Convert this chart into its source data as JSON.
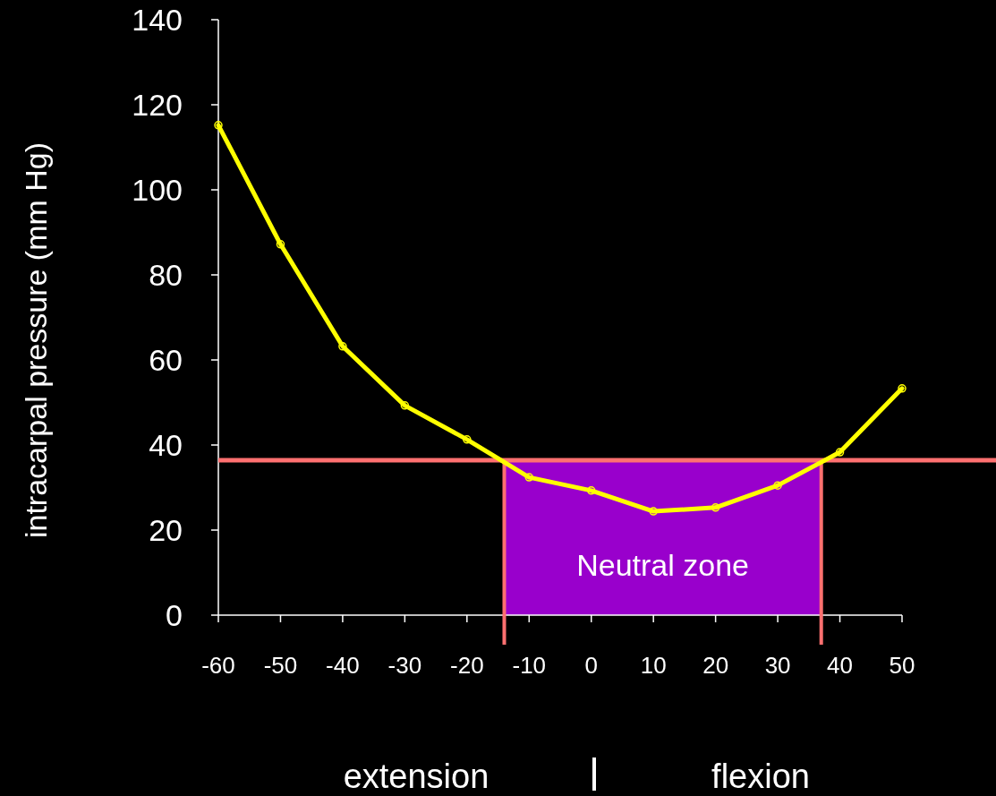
{
  "chart_data": {
    "type": "line",
    "ylabel": "intracarpal pressure (mm Hg)",
    "x": [
      -60,
      -50,
      -40,
      -30,
      -20,
      -10,
      0,
      10,
      20,
      30,
      40,
      50
    ],
    "series": [
      {
        "color": "#ffff00",
        "values": [
          115.2,
          87.2,
          63.2,
          49.3,
          41.3,
          32.4,
          29.3,
          24.4,
          25.3,
          30.5,
          38.3,
          53.3
        ]
      }
    ],
    "xlim": [
      -60,
      50
    ],
    "xticks": [
      -60,
      -50,
      -40,
      -30,
      -20,
      -10,
      0,
      10,
      20,
      30,
      40,
      50
    ],
    "ylim": [
      0,
      140
    ],
    "yticks": [
      0,
      20,
      40,
      60,
      80,
      100,
      120,
      140
    ],
    "ref_lines": [
      {
        "axis": "y",
        "value": 36.4,
        "color": "#ff7070"
      },
      {
        "axis": "x",
        "value": -14,
        "color": "#ff7070"
      },
      {
        "axis": "x",
        "value": 37,
        "color": "#ff7070"
      }
    ],
    "bands": [
      {
        "axis": "x",
        "from": -14,
        "to": 37,
        "label": "Neutral zone",
        "color": "#9900cc"
      }
    ],
    "annotations": [
      "extension",
      "flexion"
    ],
    "marker": "circle",
    "line_style": "solid",
    "grid": false
  }
}
